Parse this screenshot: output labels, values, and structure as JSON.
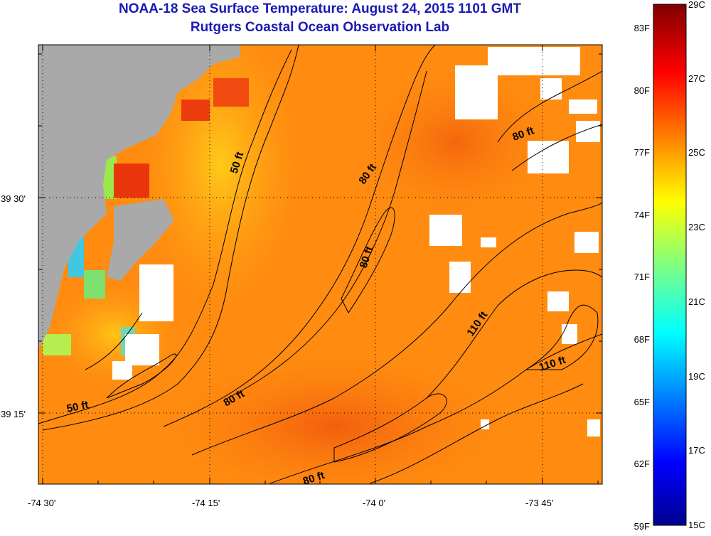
{
  "header": {
    "title": "NOAA-18 Sea Surface Temperature:  August 24, 2015 1101 GMT",
    "subtitle": "Rutgers Coastal Ocean Observation Lab"
  },
  "map": {
    "lon_labels": [
      "-74 30'",
      "-74 15'",
      "-74 0'",
      "-73 45'"
    ],
    "lat_labels": [
      "39 30'",
      "39 15'"
    ],
    "contour_labels": [
      {
        "id": "c50a",
        "text": "50 ft"
      },
      {
        "id": "c50b",
        "text": "50 ft"
      },
      {
        "id": "c80a",
        "text": "80 ft"
      },
      {
        "id": "c80b",
        "text": "80 ft"
      },
      {
        "id": "c80c",
        "text": "80 ft"
      },
      {
        "id": "c80d",
        "text": "80 ft"
      },
      {
        "id": "c80e",
        "text": "80 ft"
      },
      {
        "id": "c110a",
        "text": "110 ft"
      },
      {
        "id": "c110b",
        "text": "110 ft"
      }
    ],
    "colors": {
      "land": "#a9a9a9",
      "cloud": "#ffffff",
      "sst_dominant": "#ff8c10"
    }
  },
  "colorbar": {
    "fahrenheit_labels": [
      "83F",
      "80F",
      "77F",
      "74F",
      "71F",
      "68F",
      "65F",
      "62F",
      "59F"
    ],
    "celsius_labels": [
      "29C",
      "27C",
      "25C",
      "23C",
      "21C",
      "19C",
      "17C",
      "15C"
    ],
    "range_c": [
      15,
      29
    ],
    "range_f": [
      59,
      84.2
    ]
  }
}
